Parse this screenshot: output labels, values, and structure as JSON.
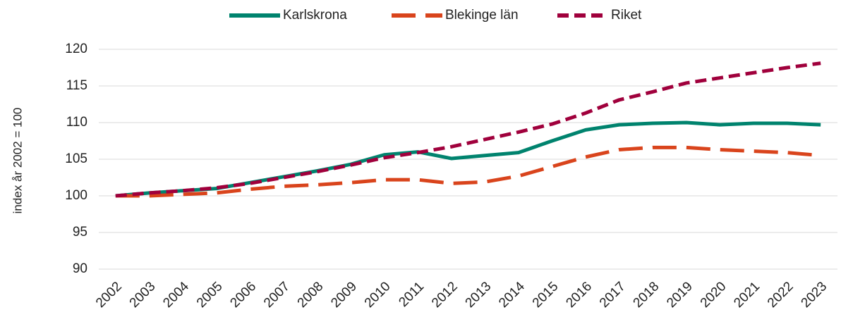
{
  "chart_data": {
    "type": "line",
    "y_label": "index år 2002 = 100",
    "categories": [
      "2002",
      "2003",
      "2004",
      "2005",
      "2006",
      "2007",
      "2008",
      "2009",
      "2010",
      "2011",
      "2012",
      "2013",
      "2014",
      "2015",
      "2016",
      "2017",
      "2018",
      "2019",
      "2020",
      "2021",
      "2022",
      "2023"
    ],
    "series": [
      {
        "name": "Karlskrona",
        "color": "#00836e",
        "style": "solid",
        "values": [
          100,
          100.4,
          100.7,
          101.0,
          101.8,
          102.6,
          103.4,
          104.3,
          105.6,
          106.0,
          105.1,
          105.5,
          105.9,
          107.5,
          109.0,
          109.7,
          109.9,
          110.0,
          109.7,
          109.9,
          109.9,
          109.7
        ]
      },
      {
        "name": "Blekinge län",
        "color": "#d9441c",
        "style": "long-dash",
        "values": [
          100,
          100.0,
          100.2,
          100.4,
          100.9,
          101.3,
          101.5,
          101.8,
          102.2,
          102.2,
          101.7,
          101.9,
          102.7,
          104.0,
          105.3,
          106.3,
          106.6,
          106.6,
          106.3,
          106.1,
          105.9,
          105.5
        ]
      },
      {
        "name": "Riket",
        "color": "#a0003c",
        "style": "short-dash",
        "values": [
          100,
          100.4,
          100.7,
          101.1,
          101.7,
          102.5,
          103.3,
          104.2,
          105.2,
          105.9,
          106.7,
          107.7,
          108.7,
          109.8,
          111.3,
          113.1,
          114.2,
          115.4,
          116.1,
          116.8,
          117.5,
          118.1
        ]
      }
    ],
    "ylim": [
      90,
      120
    ],
    "yticks": [
      90,
      95,
      100,
      105,
      110,
      115,
      120
    ],
    "grid": true,
    "legend": "top"
  }
}
